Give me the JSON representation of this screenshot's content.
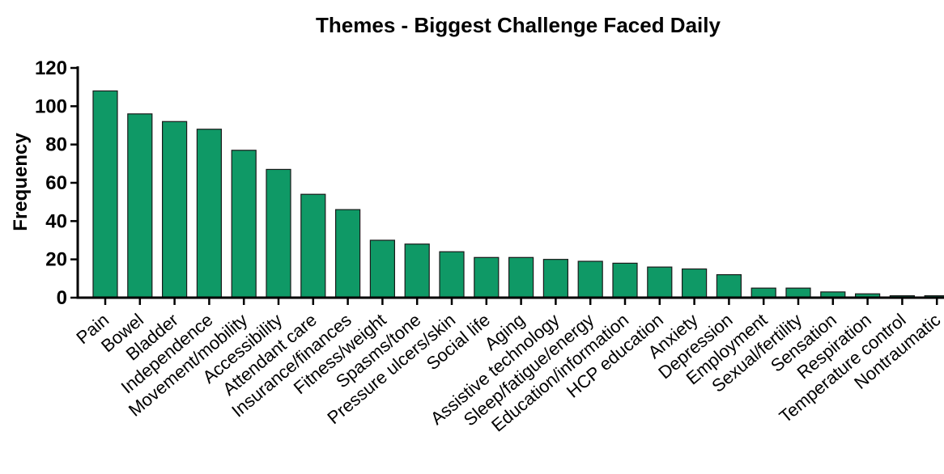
{
  "chart_data": {
    "type": "bar",
    "title": "Themes - Biggest Challenge Faced Daily",
    "xlabel": "",
    "ylabel": "Frequency",
    "ylim": [
      0,
      120
    ],
    "yticks": [
      0,
      20,
      40,
      60,
      80,
      100,
      120
    ],
    "grid": false,
    "bar_color": "#0f9966",
    "categories": [
      "Pain",
      "Bowel",
      "Bladder",
      "Independence",
      "Movement/mobility",
      "Accessibility",
      "Attendant care",
      "Insurance/finances",
      "Fitness/weight",
      "Spasms/tone",
      "Pressure ulcers/skin",
      "Social life",
      "Aging",
      "Assistive technology",
      "Sleep/fatigue/energy",
      "Education/information",
      "HCP education",
      "Anxiety",
      "Depression",
      "Employment",
      "Sexual/fertility",
      "Sensation",
      "Respiration",
      "Temperature control",
      "Nontraumatic"
    ],
    "values": [
      108,
      96,
      92,
      88,
      77,
      67,
      54,
      46,
      30,
      28,
      24,
      21,
      21,
      20,
      19,
      18,
      16,
      15,
      12,
      5,
      5,
      3,
      2,
      1,
      1
    ]
  }
}
